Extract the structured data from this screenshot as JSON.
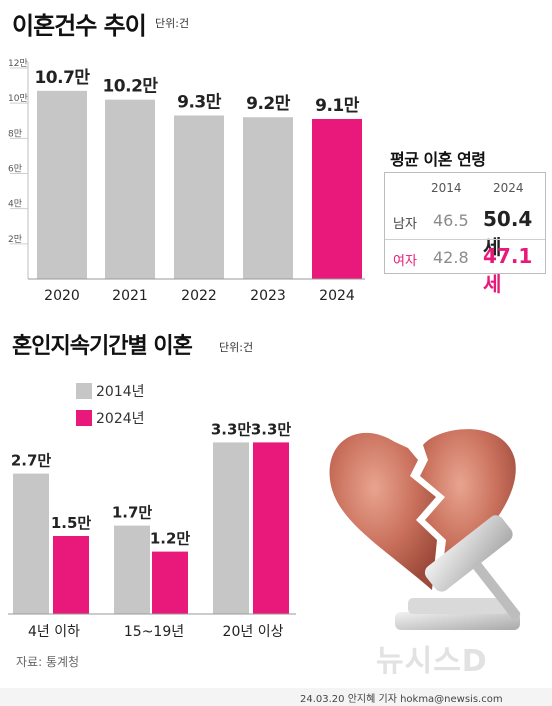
{
  "header": {
    "title": "이혼건수 추이",
    "unit": "단위:건"
  },
  "section2": {
    "title": "혼인지속기간별 이혼",
    "unit": "단위:건"
  },
  "colors": {
    "gray_bar": "#c6c6c6",
    "pink_bar": "#e8197a",
    "table_border": "#bdbdbd"
  },
  "chart_data": [
    {
      "type": "bar",
      "title": "이혼건수 추이",
      "unit": "단위:건",
      "categories": [
        "2020",
        "2021",
        "2022",
        "2023",
        "2024"
      ],
      "values": [
        10.7,
        10.2,
        9.3,
        9.2,
        9.1
      ],
      "value_labels": [
        "10.7만",
        "10.2만",
        "9.3만",
        "9.2만",
        "9.1만"
      ],
      "highlight_index": 4,
      "y_ticks": [
        2,
        4,
        6,
        8,
        10,
        12
      ],
      "y_tick_labels": [
        "2만",
        "4만",
        "6만",
        "8만",
        "10만",
        "12만"
      ],
      "ylim": [
        0,
        12
      ],
      "grid": false
    },
    {
      "type": "bar",
      "title": "혼인지속기간별 이혼",
      "unit": "단위:건",
      "categories": [
        "4년 이하",
        "15~19년",
        "20년 이상"
      ],
      "series": [
        {
          "name": "2014년",
          "values": [
            2.7,
            1.7,
            3.3
          ],
          "labels": [
            "2.7만",
            "1.7만",
            "3.3만"
          ]
        },
        {
          "name": "2024년",
          "values": [
            1.5,
            1.2,
            3.3
          ],
          "labels": [
            "1.5만",
            "1.2만",
            "3.3만"
          ]
        }
      ],
      "ylim": [
        0,
        3.8
      ],
      "legend": "top-left"
    },
    {
      "type": "table",
      "title": "평균 이혼 연령",
      "columns": [
        "2014",
        "2024"
      ],
      "rows": [
        {
          "label": "남자",
          "v2014": "46.5",
          "v2024": "50.4세"
        },
        {
          "label": "여자",
          "v2014": "42.8",
          "v2024": "47.1세"
        }
      ]
    }
  ],
  "avg_table": {
    "title": "평균 이혼 연령",
    "col_2014": "2014",
    "col_2024": "2024",
    "male": {
      "label": "남자",
      "v2014": "46.5",
      "v2024": "50.4세",
      "color": "#222222"
    },
    "female": {
      "label": "여자",
      "v2014": "42.8",
      "v2024": "47.1세",
      "color": "#e8197a"
    }
  },
  "legend": {
    "item_2014": "2014년",
    "item_2024": "2024년"
  },
  "footer": {
    "source": "자료: 통계청",
    "credit": "24.03.20 안지혜 기자 hokma@newsis.com",
    "watermark": "뉴시스D"
  }
}
